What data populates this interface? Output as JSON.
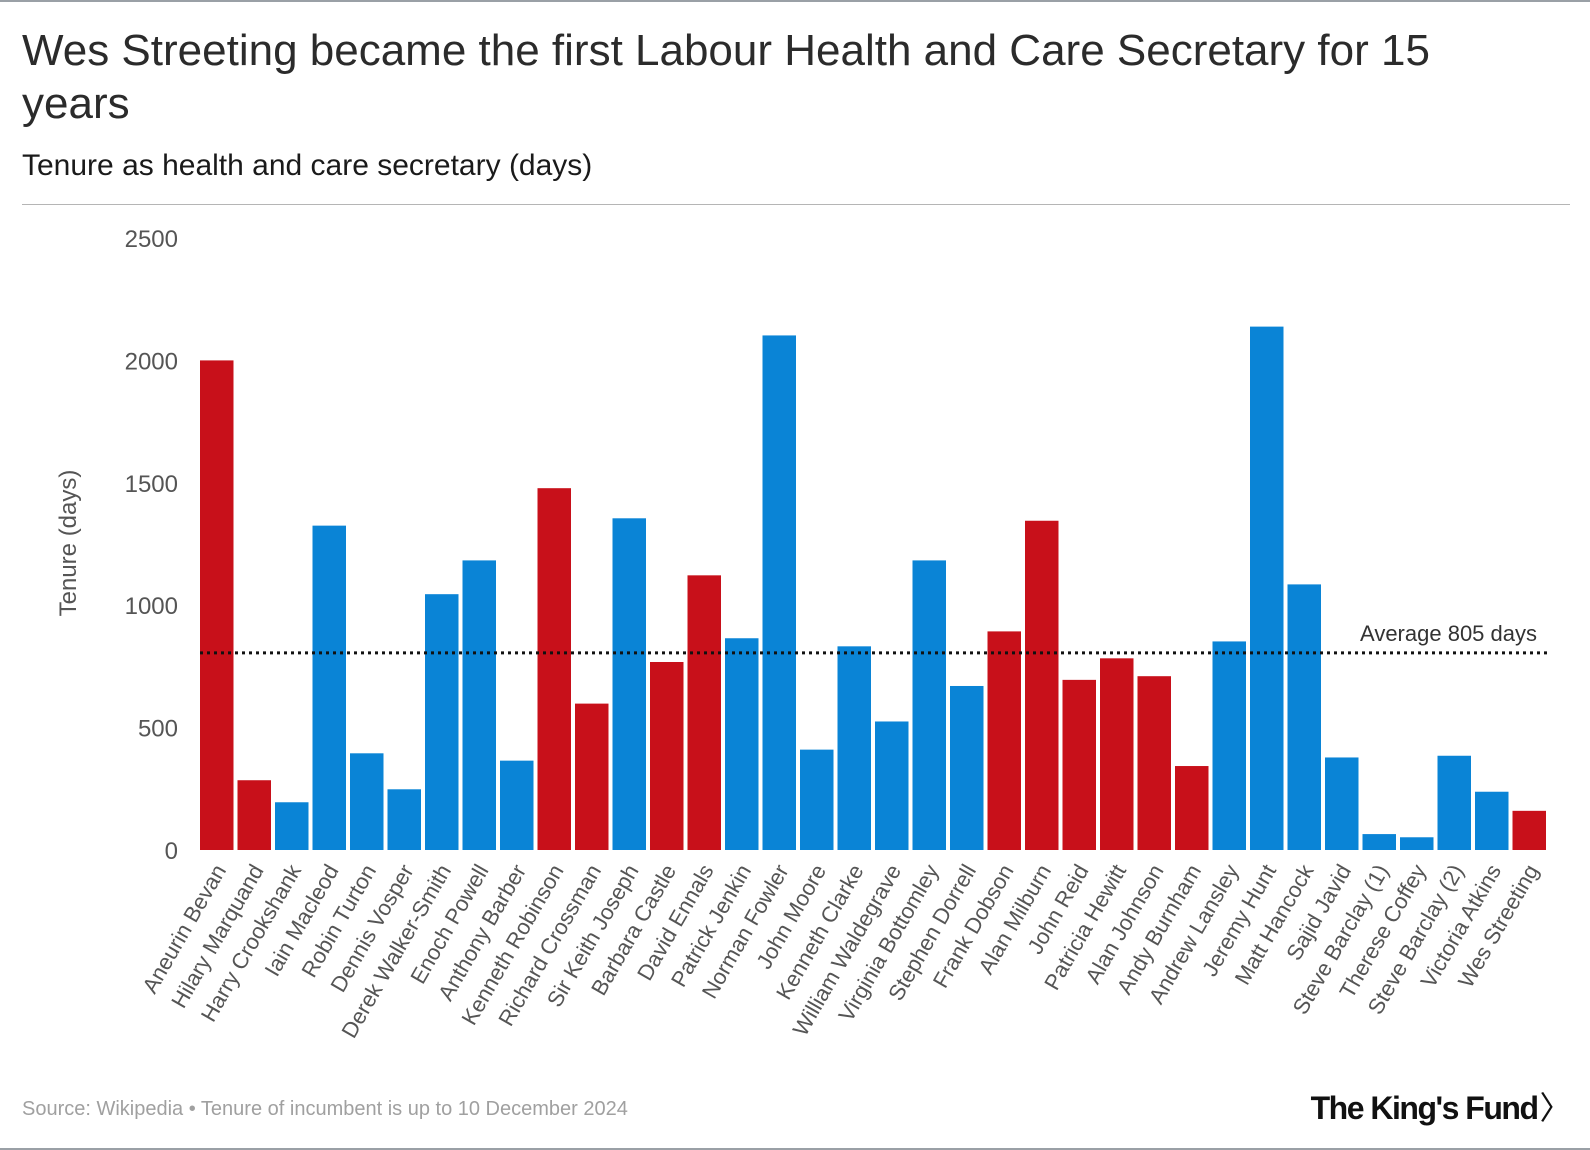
{
  "title": "Wes Streeting became the first Labour Health and Care Secretary for 15 years",
  "subtitle": "Tenure as health and care secretary (days)",
  "footer": {
    "source": "Source: Wikipedia • Tenure of incumbent is up to 10 December 2024"
  },
  "logo": {
    "text": "The King's Fund",
    "chevron": "〉"
  },
  "colors": {
    "labour": "#c8101a",
    "conservative": "#0a84d6",
    "axis_text": "#555555"
  },
  "chart_data": {
    "type": "bar",
    "title": "Wes Streeting became the first Labour Health and Care Secretary for 15 years",
    "subtitle": "Tenure as health and care secretary (days)",
    "ylabel": "Tenure (days)",
    "xlabel": "",
    "ylim": [
      0,
      2500
    ],
    "yticks": [
      0,
      500,
      1000,
      1500,
      2000,
      2500
    ],
    "grid": false,
    "categories": [
      "Aneurin Bevan",
      "Hilary Marquand",
      "Harry Crookshank",
      "Iain Macleod",
      "Robin Turton",
      "Dennis Vosper",
      "Derek Walker-Smith",
      "Enoch Powell",
      "Anthony Barber",
      "Kenneth Robinson",
      "Richard Crossman",
      "Sir Keith Joseph",
      "Barbara Castle",
      "David Ennals",
      "Patrick Jenkin",
      "Norman Fowler",
      "John Moore",
      "Kenneth Clarke",
      "William Waldegrave",
      "Virginia Bottomley",
      "Stephen Dorrell",
      "Frank Dobson",
      "Alan Milburn",
      "John Reid",
      "Patricia Hewitt",
      "Alan Johnson",
      "Andy Burnham",
      "Andrew Lansley",
      "Jeremy Hunt",
      "Matt Hancock",
      "Sajid Javid",
      "Steve Barclay (1)",
      "Therese Coffey",
      "Steve Barclay (2)",
      "Victoria Atkins",
      "Wes Streeting"
    ],
    "values": [
      2000,
      285,
      195,
      1325,
      395,
      248,
      1045,
      1183,
      365,
      1478,
      598,
      1355,
      768,
      1122,
      865,
      2102,
      410,
      832,
      525,
      1183,
      670,
      893,
      1345,
      695,
      783,
      710,
      343,
      852,
      2138,
      1085,
      378,
      65,
      52,
      385,
      238,
      160
    ],
    "party": [
      "Labour",
      "Labour",
      "Conservative",
      "Conservative",
      "Conservative",
      "Conservative",
      "Conservative",
      "Conservative",
      "Conservative",
      "Labour",
      "Labour",
      "Conservative",
      "Labour",
      "Labour",
      "Conservative",
      "Conservative",
      "Conservative",
      "Conservative",
      "Conservative",
      "Conservative",
      "Conservative",
      "Labour",
      "Labour",
      "Labour",
      "Labour",
      "Labour",
      "Labour",
      "Conservative",
      "Conservative",
      "Conservative",
      "Conservative",
      "Conservative",
      "Conservative",
      "Conservative",
      "Conservative",
      "Labour"
    ],
    "average": {
      "value": 805,
      "label": "Average 805 days"
    }
  }
}
